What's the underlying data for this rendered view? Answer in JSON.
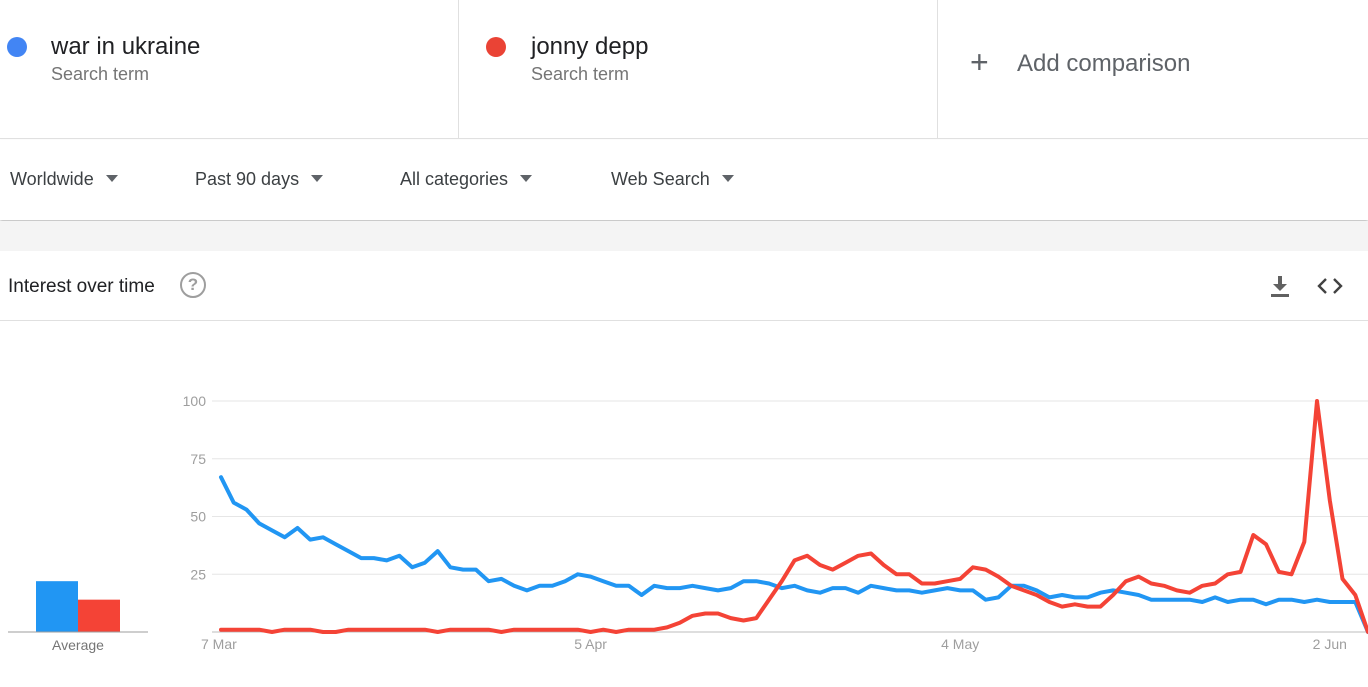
{
  "terms": [
    {
      "name": "war in ukraine",
      "type": "Search term",
      "color": "#4285f4"
    },
    {
      "name": "jonny depp",
      "type": "Search term",
      "color": "#ea4335"
    }
  ],
  "add_comparison": {
    "icon": "plus-icon",
    "label": "Add comparison"
  },
  "filters": {
    "region": "Worldwide",
    "time_range": "Past 90 days",
    "category": "All categories",
    "search_type": "Web Search"
  },
  "card": {
    "title": "Interest over time",
    "help_icon": "?",
    "actions": [
      "download-icon",
      "embed-icon"
    ]
  },
  "chart_data": {
    "type": "line",
    "y_ticks": [
      25,
      50,
      75,
      100
    ],
    "ylim": [
      0,
      100
    ],
    "x_labels": [
      {
        "label": "7 Mar",
        "day": 0
      },
      {
        "label": "5 Apr",
        "day": 29
      },
      {
        "label": "4 May",
        "day": 58
      },
      {
        "label": "2 Jun",
        "day": 87
      }
    ],
    "grid": true,
    "series": [
      {
        "color": "#2196f3",
        "values": [
          67,
          56,
          53,
          47,
          44,
          41,
          45,
          40,
          41,
          38,
          35,
          32,
          32,
          31,
          33,
          28,
          30,
          35,
          28,
          27,
          27,
          22,
          23,
          20,
          18,
          20,
          20,
          22,
          25,
          24,
          22,
          20,
          20,
          16,
          20,
          19,
          19,
          20,
          19,
          18,
          19,
          22,
          22,
          21,
          19,
          20,
          18,
          17,
          19,
          19,
          17,
          20,
          19,
          18,
          18,
          17,
          18,
          19,
          18,
          18,
          14,
          15,
          20,
          20,
          18,
          15,
          16,
          15,
          15,
          17,
          18,
          17,
          16,
          14,
          14,
          14,
          14,
          13,
          15,
          13,
          14,
          14,
          12,
          14,
          14,
          13,
          14,
          13,
          13,
          13,
          0
        ]
      },
      {
        "color": "#f44336",
        "values": [
          1,
          1,
          1,
          1,
          0,
          1,
          1,
          1,
          0,
          0,
          1,
          1,
          1,
          1,
          1,
          1,
          1,
          0,
          1,
          1,
          1,
          1,
          0,
          1,
          1,
          1,
          1,
          1,
          1,
          0,
          1,
          0,
          1,
          1,
          1,
          2,
          4,
          7,
          8,
          8,
          6,
          5,
          6,
          14,
          22,
          31,
          33,
          29,
          27,
          30,
          33,
          34,
          29,
          25,
          25,
          21,
          21,
          22,
          23,
          28,
          27,
          24,
          20,
          18,
          16,
          13,
          11,
          12,
          11,
          11,
          16,
          22,
          24,
          21,
          20,
          18,
          17,
          20,
          21,
          25,
          26,
          42,
          38,
          26,
          25,
          39,
          100,
          57,
          23,
          16,
          0
        ]
      }
    ],
    "average": {
      "label": "Average",
      "values": [
        22,
        14
      ]
    }
  }
}
